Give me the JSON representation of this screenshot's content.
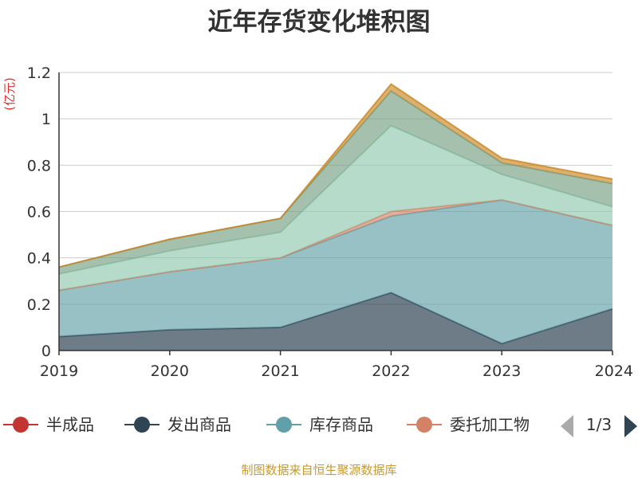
{
  "chart_data": {
    "type": "area",
    "stacked": true,
    "title": "近年存货变化堆积图",
    "ylabel": "(亿元)",
    "x": [
      "2019",
      "2020",
      "2021",
      "2022",
      "2023",
      "2024"
    ],
    "ylim": [
      0,
      1.2
    ],
    "yticks": [
      "0",
      "0.2",
      "0.4",
      "0.6",
      "0.8",
      "1",
      "1.2"
    ],
    "grid": true,
    "legend_position": "bottom",
    "series": [
      {
        "name": "发出商品",
        "color": "#2f4554",
        "values": [
          0.06,
          0.09,
          0.1,
          0.25,
          0.03,
          0.18
        ]
      },
      {
        "name": "库存商品",
        "color": "#61a0a8",
        "values": [
          0.2,
          0.25,
          0.3,
          0.33,
          0.62,
          0.36
        ]
      },
      {
        "name": "委托加工物资",
        "color": "#d48265",
        "values": [
          0.0,
          0.0,
          0.0,
          0.02,
          0.0,
          0.0
        ]
      },
      {
        "name": "",
        "color": "#91c7ae",
        "values": [
          0.07,
          0.09,
          0.11,
          0.37,
          0.11,
          0.08
        ]
      },
      {
        "name": "",
        "color": "#749f83",
        "values": [
          0.03,
          0.05,
          0.06,
          0.15,
          0.05,
          0.1
        ]
      },
      {
        "name": "",
        "color": "#ca8622",
        "values": [
          0.0,
          0.0,
          0.0,
          0.03,
          0.02,
          0.02
        ]
      }
    ],
    "legend": {
      "items": [
        {
          "label": "半成品",
          "color": "#c23531"
        },
        {
          "label": "发出商品",
          "color": "#2f4554"
        },
        {
          "label": "库存商品",
          "color": "#61a0a8"
        },
        {
          "label": "委托加工物",
          "color": "#d48265"
        }
      ],
      "page": "1/3"
    },
    "source": "制图数据来自恒生聚源数据库"
  }
}
